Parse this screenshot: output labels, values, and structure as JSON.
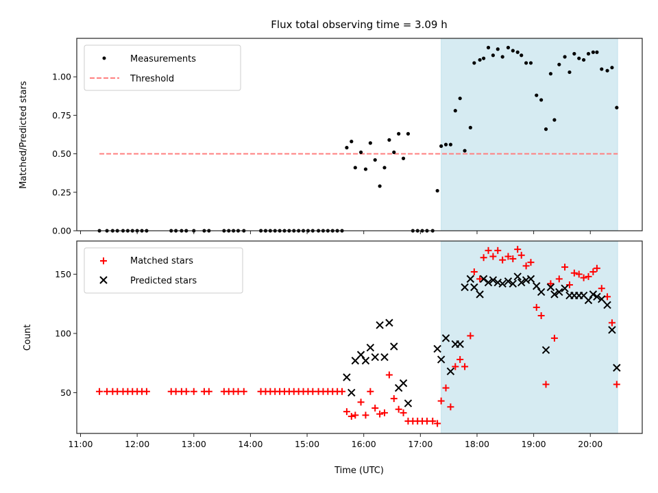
{
  "chart_data": [
    {
      "type": "scatter",
      "title": "Flux total observing time = 3.09 h",
      "xlabel": "",
      "ylabel": "Matched/Predicted stars",
      "xlim": [
        "10:56",
        "20:55"
      ],
      "ylim": [
        0,
        1.25
      ],
      "yticks": [
        0.0,
        0.25,
        0.5,
        0.75,
        1.0
      ],
      "ytick_labels": [
        "0.00",
        "0.25",
        "0.50",
        "0.75",
        "1.00"
      ],
      "xticks": [
        "11:00",
        "12:00",
        "13:00",
        "14:00",
        "15:00",
        "16:00",
        "17:00",
        "18:00",
        "19:00",
        "20:00"
      ],
      "grid": false,
      "legend_position": "upper-left",
      "shaded_span": {
        "start": "17:22",
        "end": "20:29",
        "color": "#add8e6"
      },
      "threshold": {
        "label": "Threshold",
        "value": 0.5,
        "start": "11:20",
        "end": "20:29",
        "color": "#ff7f7f"
      },
      "series": [
        {
          "name": "Measurements",
          "marker": "dot",
          "color": "#000000",
          "points": [
            [
              "11:20",
              0
            ],
            [
              "11:28",
              0
            ],
            [
              "11:34",
              0
            ],
            [
              "11:39",
              0
            ],
            [
              "11:45",
              0
            ],
            [
              "11:50",
              0
            ],
            [
              "11:55",
              0
            ],
            [
              "12:00",
              0
            ],
            [
              "12:05",
              0
            ],
            [
              "12:10",
              0
            ],
            [
              "12:36",
              0
            ],
            [
              "12:41",
              0
            ],
            [
              "12:47",
              0
            ],
            [
              "12:52",
              0
            ],
            [
              "13:00",
              0
            ],
            [
              "13:11",
              0
            ],
            [
              "13:16",
              0
            ],
            [
              "13:32",
              0
            ],
            [
              "13:37",
              0
            ],
            [
              "13:42",
              0
            ],
            [
              "13:47",
              0
            ],
            [
              "13:53",
              0
            ],
            [
              "14:11",
              0
            ],
            [
              "14:16",
              0
            ],
            [
              "14:21",
              0
            ],
            [
              "14:26",
              0
            ],
            [
              "14:31",
              0
            ],
            [
              "14:36",
              0
            ],
            [
              "14:41",
              0
            ],
            [
              "14:46",
              0
            ],
            [
              "14:51",
              0
            ],
            [
              "14:56",
              0
            ],
            [
              "15:01",
              0
            ],
            [
              "15:06",
              0
            ],
            [
              "15:12",
              0
            ],
            [
              "15:17",
              0
            ],
            [
              "15:22",
              0
            ],
            [
              "15:27",
              0
            ],
            [
              "15:32",
              0
            ],
            [
              "15:37",
              0
            ],
            [
              "15:42",
              0.54
            ],
            [
              "15:47",
              0.58
            ],
            [
              "15:51",
              0.41
            ],
            [
              "15:57",
              0.51
            ],
            [
              "16:02",
              0.4
            ],
            [
              "16:07",
              0.57
            ],
            [
              "16:12",
              0.46
            ],
            [
              "16:17",
              0.29
            ],
            [
              "16:22",
              0.41
            ],
            [
              "16:27",
              0.59
            ],
            [
              "16:32",
              0.51
            ],
            [
              "16:37",
              0.63
            ],
            [
              "16:42",
              0.47
            ],
            [
              "16:47",
              0.63
            ],
            [
              "16:52",
              0
            ],
            [
              "16:57",
              0
            ],
            [
              "17:02",
              0
            ],
            [
              "17:07",
              0
            ],
            [
              "17:13",
              0
            ],
            [
              "17:18",
              0.26
            ],
            [
              "17:22",
              0.55
            ],
            [
              "17:27",
              0.56
            ],
            [
              "17:32",
              0.56
            ],
            [
              "17:37",
              0.78
            ],
            [
              "17:42",
              0.86
            ],
            [
              "17:47",
              0.52
            ],
            [
              "17:53",
              0.67
            ],
            [
              "17:57",
              1.09
            ],
            [
              "18:03",
              1.11
            ],
            [
              "18:07",
              1.12
            ],
            [
              "18:12",
              1.19
            ],
            [
              "18:17",
              1.14
            ],
            [
              "18:22",
              1.18
            ],
            [
              "18:27",
              1.13
            ],
            [
              "18:33",
              1.19
            ],
            [
              "18:38",
              1.17
            ],
            [
              "18:43",
              1.16
            ],
            [
              "18:47",
              1.14
            ],
            [
              "18:52",
              1.09
            ],
            [
              "18:57",
              1.09
            ],
            [
              "19:03",
              0.88
            ],
            [
              "19:08",
              0.85
            ],
            [
              "19:13",
              0.66
            ],
            [
              "19:18",
              1.02
            ],
            [
              "19:22",
              0.72
            ],
            [
              "19:27",
              1.08
            ],
            [
              "19:33",
              1.13
            ],
            [
              "19:38",
              1.03
            ],
            [
              "19:43",
              1.15
            ],
            [
              "19:48",
              1.12
            ],
            [
              "19:53",
              1.11
            ],
            [
              "19:58",
              1.15
            ],
            [
              "20:03",
              1.16
            ],
            [
              "20:07",
              1.16
            ],
            [
              "20:12",
              1.05
            ],
            [
              "20:18",
              1.04
            ],
            [
              "20:23",
              1.06
            ],
            [
              "20:28",
              0.8
            ]
          ]
        }
      ]
    },
    {
      "type": "scatter",
      "title": "",
      "xlabel": "Time (UTC)",
      "ylabel": "Count",
      "xlim": [
        "10:56",
        "20:55"
      ],
      "ylim": [
        15.6,
        178
      ],
      "yticks": [
        50,
        100,
        150
      ],
      "ytick_labels": [
        "50",
        "100",
        "150"
      ],
      "xticks": [
        "11:00",
        "12:00",
        "13:00",
        "14:00",
        "15:00",
        "16:00",
        "17:00",
        "18:00",
        "19:00",
        "20:00"
      ],
      "xtick_labels": [
        "11:00",
        "12:00",
        "13:00",
        "14:00",
        "15:00",
        "16:00",
        "17:00",
        "18:00",
        "19:00",
        "20:00"
      ],
      "grid": false,
      "legend_position": "upper-left",
      "shaded_span": {
        "start": "17:22",
        "end": "20:29",
        "color": "#add8e6"
      },
      "series": [
        {
          "name": "Matched stars",
          "marker": "plus",
          "color": "#ff0000",
          "points": [
            [
              "11:20",
              51
            ],
            [
              "11:28",
              51
            ],
            [
              "11:34",
              51
            ],
            [
              "11:39",
              51
            ],
            [
              "11:45",
              51
            ],
            [
              "11:50",
              51
            ],
            [
              "11:55",
              51
            ],
            [
              "12:00",
              51
            ],
            [
              "12:05",
              51
            ],
            [
              "12:10",
              51
            ],
            [
              "12:36",
              51
            ],
            [
              "12:41",
              51
            ],
            [
              "12:47",
              51
            ],
            [
              "12:52",
              51
            ],
            [
              "13:00",
              51
            ],
            [
              "13:11",
              51
            ],
            [
              "13:16",
              51
            ],
            [
              "13:32",
              51
            ],
            [
              "13:37",
              51
            ],
            [
              "13:42",
              51
            ],
            [
              "13:47",
              51
            ],
            [
              "13:53",
              51
            ],
            [
              "14:11",
              51
            ],
            [
              "14:16",
              51
            ],
            [
              "14:21",
              51
            ],
            [
              "14:26",
              51
            ],
            [
              "14:31",
              51
            ],
            [
              "14:36",
              51
            ],
            [
              "14:41",
              51
            ],
            [
              "14:46",
              51
            ],
            [
              "14:51",
              51
            ],
            [
              "14:56",
              51
            ],
            [
              "15:01",
              51
            ],
            [
              "15:06",
              51
            ],
            [
              "15:12",
              51
            ],
            [
              "15:17",
              51
            ],
            [
              "15:22",
              51
            ],
            [
              "15:27",
              51
            ],
            [
              "15:32",
              51
            ],
            [
              "15:37",
              51
            ],
            [
              "15:42",
              34
            ],
            [
              "15:47",
              30
            ],
            [
              "15:51",
              31
            ],
            [
              "15:57",
              42
            ],
            [
              "16:02",
              31
            ],
            [
              "16:07",
              51
            ],
            [
              "16:12",
              37
            ],
            [
              "16:17",
              32
            ],
            [
              "16:22",
              33
            ],
            [
              "16:27",
              65
            ],
            [
              "16:32",
              45
            ],
            [
              "16:37",
              36
            ],
            [
              "16:42",
              33
            ],
            [
              "16:47",
              26
            ],
            [
              "16:52",
              26
            ],
            [
              "16:57",
              26
            ],
            [
              "17:02",
              26
            ],
            [
              "17:07",
              26
            ],
            [
              "17:13",
              26
            ],
            [
              "17:18",
              24
            ],
            [
              "17:22",
              43
            ],
            [
              "17:27",
              54
            ],
            [
              "17:32",
              38
            ],
            [
              "17:37",
              72
            ],
            [
              "17:42",
              78
            ],
            [
              "17:47",
              72
            ],
            [
              "17:53",
              98
            ],
            [
              "17:57",
              152
            ],
            [
              "18:03",
              146
            ],
            [
              "18:07",
              164
            ],
            [
              "18:12",
              170
            ],
            [
              "18:17",
              165
            ],
            [
              "18:22",
              170
            ],
            [
              "18:27",
              162
            ],
            [
              "18:33",
              165
            ],
            [
              "18:38",
              163
            ],
            [
              "18:43",
              171
            ],
            [
              "18:47",
              166
            ],
            [
              "18:52",
              157
            ],
            [
              "18:57",
              160
            ],
            [
              "19:03",
              122
            ],
            [
              "19:08",
              115
            ],
            [
              "19:13",
              57
            ],
            [
              "19:18",
              142
            ],
            [
              "19:22",
              96
            ],
            [
              "19:27",
              146
            ],
            [
              "19:33",
              156
            ],
            [
              "19:38",
              141
            ],
            [
              "19:43",
              151
            ],
            [
              "19:48",
              150
            ],
            [
              "19:53",
              147
            ],
            [
              "19:58",
              148
            ],
            [
              "20:03",
              152
            ],
            [
              "20:07",
              155
            ],
            [
              "20:12",
              138
            ],
            [
              "20:18",
              131
            ],
            [
              "20:23",
              109
            ],
            [
              "20:28",
              57
            ]
          ]
        },
        {
          "name": "Predicted stars",
          "marker": "x",
          "color": "#000000",
          "points": [
            [
              "15:42",
              63
            ],
            [
              "15:47",
              50
            ],
            [
              "15:51",
              77
            ],
            [
              "15:57",
              82
            ],
            [
              "16:02",
              77
            ],
            [
              "16:07",
              88
            ],
            [
              "16:12",
              80
            ],
            [
              "16:17",
              107
            ],
            [
              "16:22",
              80
            ],
            [
              "16:27",
              109
            ],
            [
              "16:32",
              89
            ],
            [
              "16:37",
              54
            ],
            [
              "16:42",
              58
            ],
            [
              "16:47",
              41
            ],
            [
              "17:18",
              87
            ],
            [
              "17:22",
              78
            ],
            [
              "17:27",
              96
            ],
            [
              "17:32",
              68
            ],
            [
              "17:37",
              91
            ],
            [
              "17:42",
              91
            ],
            [
              "17:47",
              139
            ],
            [
              "17:53",
              146
            ],
            [
              "17:57",
              139
            ],
            [
              "18:03",
              133
            ],
            [
              "18:07",
              146
            ],
            [
              "18:12",
              143
            ],
            [
              "18:17",
              145
            ],
            [
              "18:22",
              143
            ],
            [
              "18:27",
              142
            ],
            [
              "18:33",
              144
            ],
            [
              "18:38",
              142
            ],
            [
              "18:43",
              148
            ],
            [
              "18:47",
              143
            ],
            [
              "18:52",
              145
            ],
            [
              "18:57",
              146
            ],
            [
              "19:03",
              140
            ],
            [
              "19:08",
              135
            ],
            [
              "19:13",
              86
            ],
            [
              "19:18",
              139
            ],
            [
              "19:22",
              133
            ],
            [
              "19:27",
              135
            ],
            [
              "19:33",
              138
            ],
            [
              "19:38",
              132
            ],
            [
              "19:43",
              132
            ],
            [
              "19:48",
              132
            ],
            [
              "19:53",
              132
            ],
            [
              "19:58",
              128
            ],
            [
              "20:03",
              133
            ],
            [
              "20:07",
              131
            ],
            [
              "20:12",
              129
            ],
            [
              "20:18",
              124
            ],
            [
              "20:23",
              103
            ],
            [
              "20:28",
              71
            ]
          ]
        }
      ]
    }
  ]
}
